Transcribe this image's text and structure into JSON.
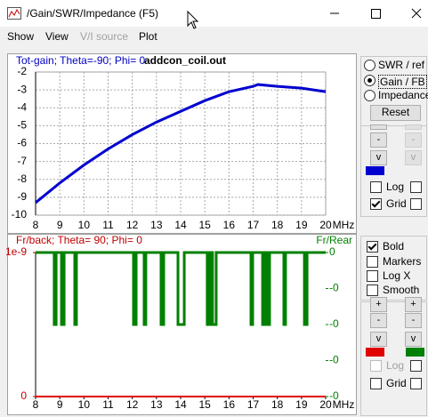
{
  "window": {
    "title": "/Gain/SWR/Impedance (F5)",
    "menu": [
      "Show",
      "View",
      "V/I source",
      "Plot"
    ]
  },
  "panel": {
    "modes": [
      "SWR / ref",
      "Gain / FB",
      "Impedance"
    ],
    "reset": "Reset",
    "top_buttons": [
      "-",
      "-",
      "v",
      "v"
    ],
    "top_checks": [
      "Log",
      "Grid"
    ],
    "options": [
      "Bold",
      "Markers",
      "Log X",
      "Smooth"
    ],
    "bottom_buttons": [
      "+",
      "+",
      "-",
      "-",
      "v",
      "v"
    ],
    "bottom_checks": [
      "Log",
      "Grid"
    ]
  },
  "chart_data": [
    {
      "type": "line",
      "title": "Tot-gain; Theta=-90; Phi= 0",
      "subtitle": "addcon_coil.out",
      "title_color": "#0000c0",
      "xlabel": "MHz",
      "xlim": [
        8,
        20
      ],
      "xticks": [
        8,
        9,
        10,
        11,
        12,
        13,
        14,
        15,
        16,
        17,
        18,
        19,
        20
      ],
      "ylim": [
        -10,
        -2
      ],
      "yticks": [
        -2,
        -3,
        -4,
        -5,
        -6,
        -7,
        -8,
        -9,
        -10
      ],
      "grid": true,
      "series": [
        {
          "color": "#0000d0",
          "x": [
            8,
            9,
            10,
            11,
            12,
            13,
            14,
            15,
            16,
            17,
            17.2,
            18,
            19,
            20
          ],
          "values": [
            -9.3,
            -8.2,
            -7.2,
            -6.3,
            -5.5,
            -4.8,
            -4.2,
            -3.6,
            -3.1,
            -2.8,
            -2.7,
            -2.8,
            -2.9,
            -3.1
          ]
        }
      ]
    },
    {
      "type": "line",
      "title": "Fr/back; Theta= 90; Phi= 0",
      "title_color": "#c00000",
      "y2label": "Fr/Rear",
      "y2_color": "#008000",
      "xlabel": "MHz",
      "xlim": [
        8,
        20
      ],
      "xticks": [
        8,
        9,
        10,
        11,
        12,
        13,
        14,
        15,
        16,
        17,
        18,
        19,
        20
      ],
      "ylim": [
        0,
        1e-09
      ],
      "yticks": [
        1e-09,
        0
      ],
      "y_color": "#c00000",
      "y2lim": [
        -4e-10,
        0
      ],
      "y2ticks": [
        0,
        {
          "value": -1e-10,
          "label": "-0"
        },
        {
          "value": -2e-10,
          "label": "-0"
        },
        {
          "value": -3e-10,
          "label": "-0"
        },
        {
          "value": -4e-10,
          "label": "-0"
        }
      ],
      "grid": false,
      "series": [
        {
          "color": "#e00000",
          "x": [
            8,
            20
          ],
          "values": [
            0,
            0
          ]
        },
        {
          "color": "#008000",
          "axis": "y2",
          "x": [
            8,
            8.77,
            8.77,
            8.85,
            8.85,
            9.07,
            9.07,
            9.18,
            9.18,
            9.62,
            9.62,
            9.69,
            9.69,
            12.05,
            12.05,
            12.16,
            12.16,
            12.49,
            12.49,
            12.56,
            12.56,
            13.19,
            13.19,
            13.3,
            13.3,
            13.89,
            13.89,
            14.15,
            14.15,
            15.1,
            15.1,
            15.21,
            15.21,
            15.32,
            15.32,
            15.47,
            15.47,
            16.91,
            16.91,
            16.98,
            16.98,
            17.39,
            17.39,
            17.46,
            17.46,
            17.57,
            17.57,
            17.68,
            17.68,
            18.27,
            18.27,
            18.34,
            18.34,
            19.12,
            19.12,
            19.23,
            19.23,
            20
          ],
          "values": [
            0,
            0,
            -2e-10,
            -2e-10,
            0,
            0,
            -2e-10,
            -2e-10,
            0,
            0,
            -2e-10,
            -2e-10,
            0,
            0,
            -2e-10,
            -2e-10,
            0,
            0,
            -2e-10,
            -2e-10,
            0,
            0,
            -2e-10,
            -2e-10,
            0,
            0,
            -2e-10,
            -2e-10,
            0,
            0,
            -2e-10,
            -2e-10,
            0,
            0,
            -2e-10,
            -2e-10,
            0,
            0,
            -2e-10,
            -2e-10,
            0,
            0,
            -2e-10,
            -2e-10,
            0,
            0,
            -2e-10,
            -2e-10,
            0,
            0,
            -2e-10,
            -2e-10,
            0,
            0,
            -2e-10,
            -2e-10,
            0,
            0
          ]
        }
      ]
    }
  ]
}
